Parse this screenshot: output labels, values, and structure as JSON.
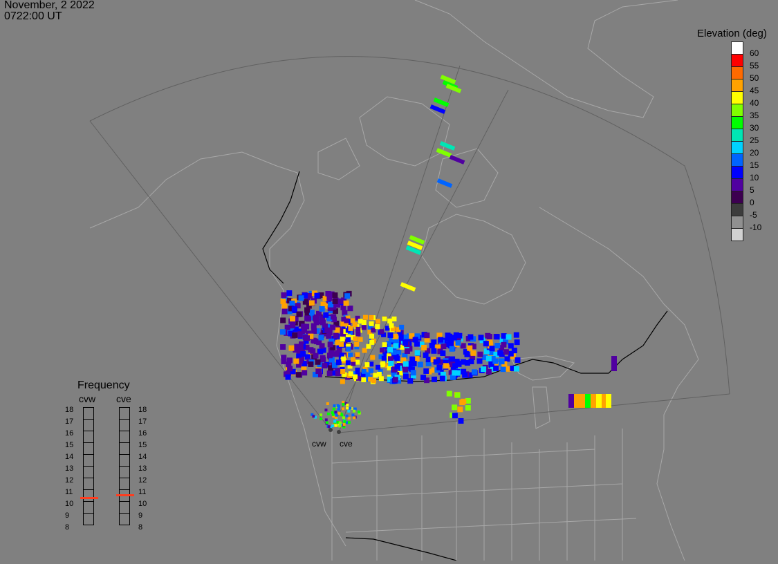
{
  "header": {
    "date": "November, 2 2022",
    "time": "0722:00 UT"
  },
  "legend": {
    "title": "Elevation (deg)",
    "entries": [
      {
        "label": "60",
        "color": "#ffffff"
      },
      {
        "label": "55",
        "color": "#ff0000"
      },
      {
        "label": "50",
        "color": "#ff6a00"
      },
      {
        "label": "45",
        "color": "#ffa200"
      },
      {
        "label": "40",
        "color": "#ffff00"
      },
      {
        "label": "35",
        "color": "#80ff00"
      },
      {
        "label": "30",
        "color": "#00ff00"
      },
      {
        "label": "25",
        "color": "#00e6b4"
      },
      {
        "label": "20",
        "color": "#00d2ff"
      },
      {
        "label": "15",
        "color": "#0064ff"
      },
      {
        "label": "10",
        "color": "#0000ff"
      },
      {
        "label": "5",
        "color": "#5000a0"
      },
      {
        "label": "0",
        "color": "#3c0050"
      },
      {
        "label": "-5",
        "color": "#3c3c3c"
      },
      {
        "label": "-10",
        "color": "#909090"
      },
      {
        "label": "",
        "color": "#d2d2d2"
      }
    ]
  },
  "frequency": {
    "title": "Frequency",
    "unit_ticks": [
      "18",
      "17",
      "16",
      "15",
      "14",
      "13",
      "12",
      "11",
      "10",
      "9",
      "8"
    ],
    "radars": [
      {
        "name": "cvw",
        "value_mhz": 10.6
      },
      {
        "name": "cve",
        "value_mhz": 10.8
      }
    ],
    "marker_color": "#ff3c1e"
  },
  "stations": [
    "cvw",
    "cve"
  ],
  "map": {
    "background": "#808080",
    "coast_color": "#a8a8a8",
    "border_color": "#000000",
    "fov_color": "#606060"
  }
}
